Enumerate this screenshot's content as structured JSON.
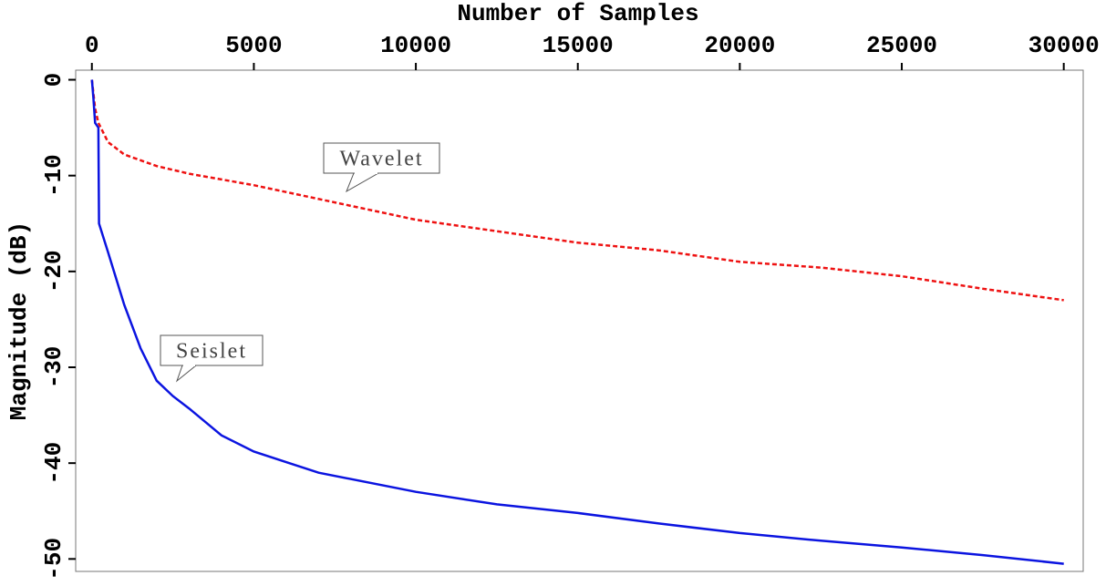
{
  "chart_data": {
    "type": "line",
    "xlabel": "Number of Samples",
    "ylabel": "Magnitude (dB)",
    "xlim": [
      -500,
      30600
    ],
    "ylim": [
      -51.3,
      1
    ],
    "xticks": [
      0,
      5000,
      10000,
      15000,
      20000,
      25000,
      30000
    ],
    "yticks": [
      0,
      -10,
      -20,
      -30,
      -40,
      -50
    ],
    "series": [
      {
        "name": "Wavelet",
        "color": "#ee1111",
        "dash": true,
        "x": [
          0,
          100,
          200,
          500,
          1000,
          2000,
          3000,
          5000,
          7500,
          10000,
          12500,
          15000,
          17500,
          20000,
          22500,
          25000,
          27500,
          30000
        ],
        "values": [
          0,
          -3,
          -4.5,
          -6.5,
          -7.8,
          -9,
          -9.8,
          -11,
          -12.8,
          -14.6,
          -15.8,
          -17,
          -17.8,
          -19,
          -19.6,
          -20.5,
          -21.8,
          -23
        ]
      },
      {
        "name": "Seislet",
        "color": "#0b14e0",
        "dash": false,
        "x": [
          0,
          50,
          100,
          200,
          220,
          500,
          1000,
          1500,
          2000,
          2500,
          3000,
          4000,
          5000,
          7000,
          10000,
          12500,
          15000,
          17500,
          20000,
          22500,
          25000,
          27500,
          30000
        ],
        "values": [
          0,
          -2,
          -4.5,
          -5,
          -15,
          -18,
          -23.5,
          -28,
          -31.4,
          -33,
          -34.3,
          -37.1,
          -38.8,
          -41,
          -43,
          -44.3,
          -45.2,
          -46.3,
          -47.3,
          -48.1,
          -48.8,
          -49.6,
          -50.5
        ]
      }
    ],
    "annotations": [
      "Wavelet",
      "Seislet"
    ]
  }
}
